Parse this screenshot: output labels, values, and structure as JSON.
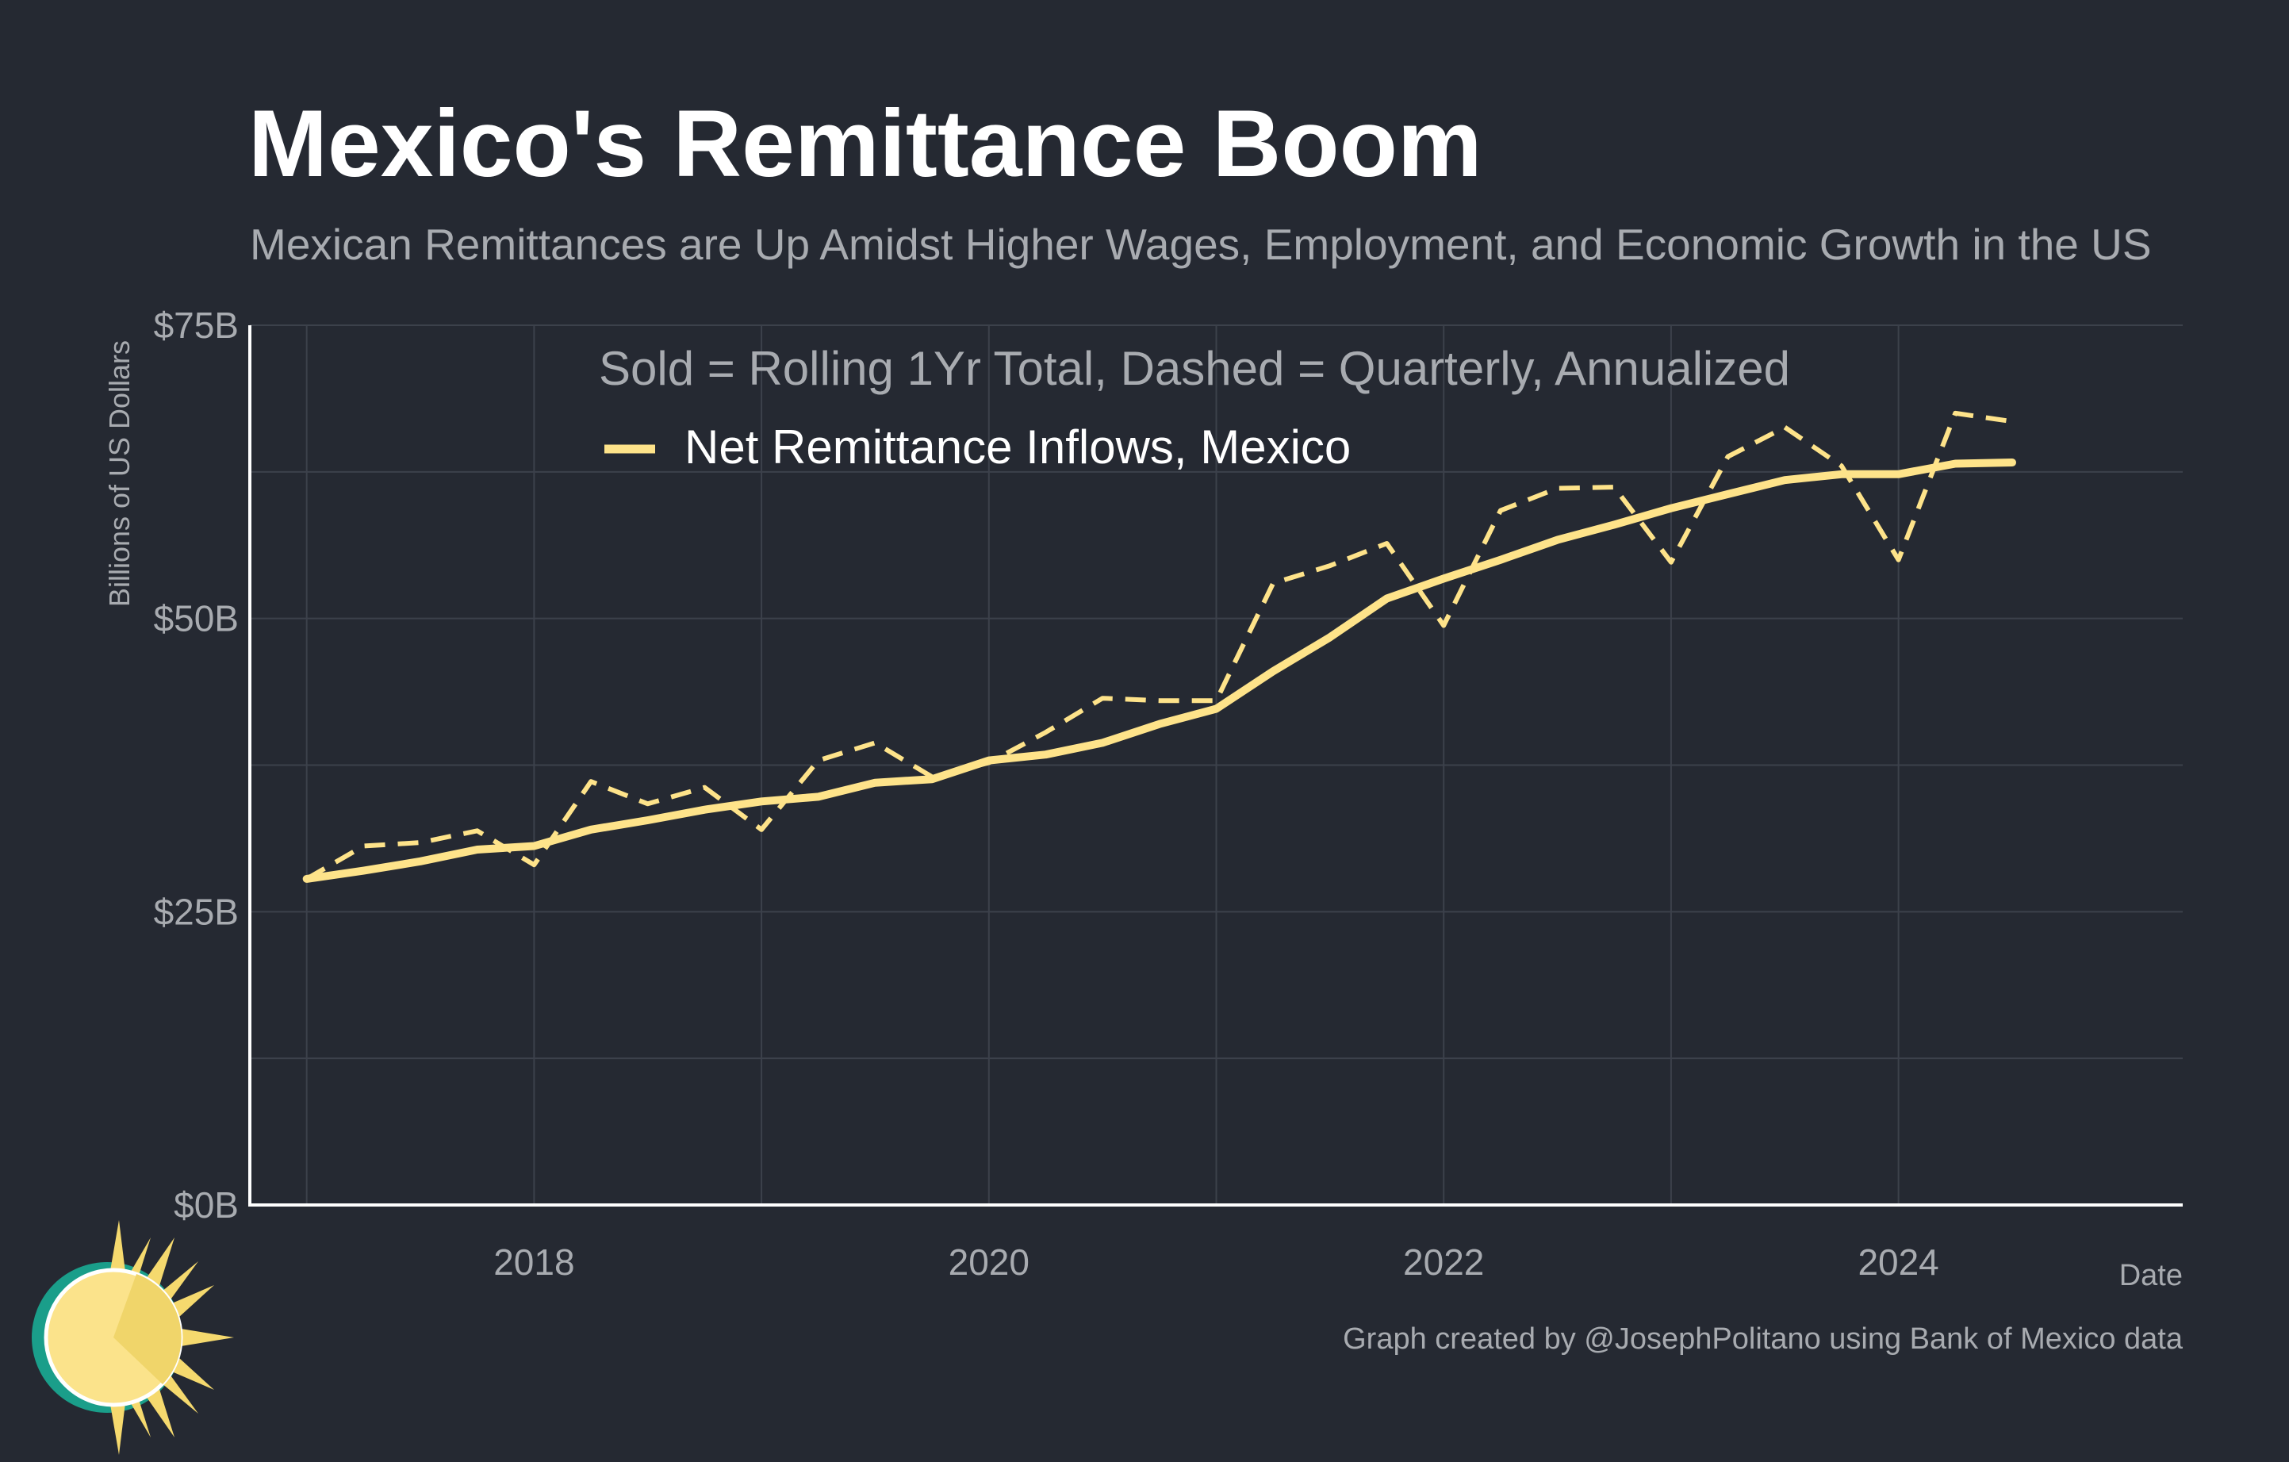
{
  "title": "Mexico's Remittance Boom",
  "subtitle": "Mexican Remittances are Up Amidst Higher Wages, Employment, and Economic Growth in the US",
  "note": "Sold = Rolling 1Yr Total, Dashed = Quarterly, Annualized",
  "credit": "Graph created by @JosephPolitano using Bank of Mexico data",
  "colors": {
    "background": "#252932",
    "series": "#fee38a",
    "grid": "#3c414b",
    "axis": "#ffffff",
    "muted_text": "#a8abb0",
    "title": "#ffffff"
  },
  "chart_data": {
    "type": "line",
    "xlabel": "Date",
    "ylabel": "Billions of US Dollars",
    "xlim": [
      2016.75,
      2025.25
    ],
    "ylim": [
      0,
      75
    ],
    "x_ticks": [
      2018,
      2020,
      2022,
      2024
    ],
    "x_tick_labels": [
      "2018",
      "2020",
      "2022",
      "2024"
    ],
    "y_ticks": [
      0,
      25,
      50,
      75
    ],
    "y_tick_labels": [
      "$0B",
      "$25B",
      "$50B",
      "$75B"
    ],
    "grid": true,
    "legend_position": "top-left",
    "x": [
      2017.0,
      2017.25,
      2017.5,
      2017.75,
      2018.0,
      2018.25,
      2018.5,
      2018.75,
      2019.0,
      2019.25,
      2019.5,
      2019.75,
      2020.0,
      2020.25,
      2020.5,
      2020.75,
      2021.0,
      2021.25,
      2021.5,
      2021.75,
      2022.0,
      2022.25,
      2022.5,
      2022.75,
      2023.0,
      2023.25,
      2023.5,
      2023.75,
      2024.0,
      2024.25,
      2024.5
    ],
    "series": [
      {
        "name": "Net Remittance Inflows, Mexico",
        "style": "solid",
        "values": [
          27.8,
          28.5,
          29.3,
          30.3,
          30.6,
          32.0,
          32.8,
          33.7,
          34.4,
          34.8,
          36.0,
          36.3,
          37.9,
          38.4,
          39.4,
          41.0,
          42.3,
          45.5,
          48.4,
          51.7,
          53.4,
          55.0,
          56.7,
          58.0,
          59.4,
          60.6,
          61.8,
          62.3,
          62.3,
          63.2,
          63.3
        ]
      },
      {
        "name": "",
        "style": "dashed",
        "values": [
          27.8,
          30.6,
          30.9,
          31.9,
          29.0,
          36.1,
          34.2,
          35.6,
          32.0,
          37.9,
          39.4,
          36.5,
          37.7,
          40.3,
          43.2,
          43.0,
          43.0,
          53.0,
          54.5,
          56.4,
          49.4,
          59.2,
          61.1,
          61.2,
          54.8,
          63.8,
          66.3,
          63.0,
          55.0,
          67.5,
          66.8
        ]
      }
    ]
  }
}
